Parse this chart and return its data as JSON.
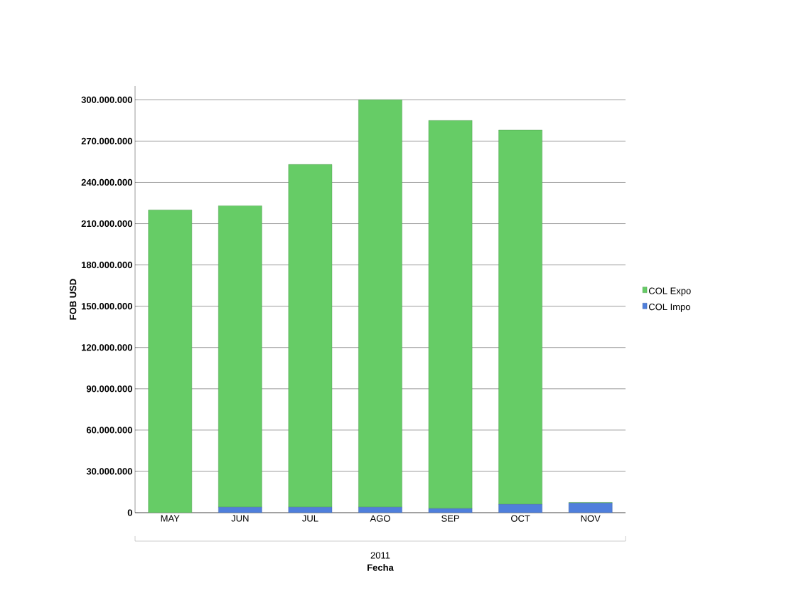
{
  "chart_data": {
    "type": "bar",
    "stacked": true,
    "xlabel": "Fecha",
    "ylabel": "FOB USD",
    "categories": [
      "MAY",
      "JUN",
      "JUL",
      "AGO",
      "SEP",
      "OCT",
      "NOV"
    ],
    "series": [
      {
        "name": "COL Impo",
        "color": "#4f7fdc",
        "values": [
          0,
          4000000,
          4000000,
          4000000,
          3000000,
          6000000,
          7000000
        ]
      },
      {
        "name": "COL Expo",
        "color": "#66cc66",
        "values": [
          220000000,
          219000000,
          249000000,
          296000000,
          282000000,
          272000000,
          500000
        ]
      }
    ],
    "ylim": [
      0,
      310000000
    ],
    "yticks": [
      {
        "value": 0,
        "label": "0"
      },
      {
        "value": 30000000,
        "label": "30.000.000"
      },
      {
        "value": 60000000,
        "label": "60.000.000"
      },
      {
        "value": 90000000,
        "label": "90.000.000"
      },
      {
        "value": 120000000,
        "label": "120.000.000"
      },
      {
        "value": 150000000,
        "label": "150.000.000"
      },
      {
        "value": 180000000,
        "label": "180.000.000"
      },
      {
        "value": 210000000,
        "label": "210.000.000"
      },
      {
        "value": 240000000,
        "label": "240.000.000"
      },
      {
        "value": 270000000,
        "label": "270.000.000"
      },
      {
        "value": 300000000,
        "label": "300.000.000"
      }
    ],
    "grid": "y",
    "legend": "right",
    "annotations": [
      "2011"
    ]
  }
}
